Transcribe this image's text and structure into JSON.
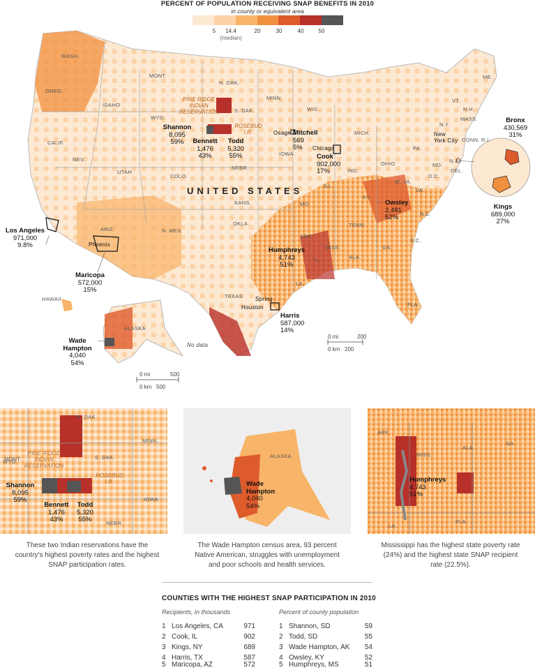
{
  "header": {
    "title": "PERCENT OF POPULATION RECEIVING SNAP BENEFITS IN 2010",
    "subtitle": "in county or equivalent area"
  },
  "legend": {
    "colors": [
      "#fde8d2",
      "#fbd3a7",
      "#f8b468",
      "#f1903e",
      "#de5b2c",
      "#b8302a",
      "#555555"
    ],
    "ticks": [
      "5",
      "14.4",
      "20",
      "30",
      "40",
      "50"
    ],
    "median_note": "(median)"
  },
  "map": {
    "country_label": "UNITED STATES",
    "no_data": "No data",
    "states": [
      "WASH.",
      "OREG.",
      "IDAHO",
      "MONT.",
      "WYO.",
      "N. DAK.",
      "S. DAK.",
      "MINN.",
      "WIS.",
      "MICH.",
      "IOWA",
      "NEBR.",
      "CALIF.",
      "NEV.",
      "UTAH",
      "COLO.",
      "KANS.",
      "MO.",
      "ILL.",
      "IND.",
      "OHIO",
      "PA.",
      "N.Y.",
      "VT.",
      "N.H.",
      "MAINE_ME",
      "MASS.",
      "CONN.",
      "R.I.",
      "N.J.",
      "DEL.",
      "MD.",
      "D.C.",
      "VA.",
      "W. VA.",
      "KY.",
      "TENN.",
      "N.C.",
      "S.C.",
      "GA.",
      "ALA.",
      "MISS.",
      "ARK.",
      "LA.",
      "FLA.",
      "TEXAS",
      "OKLA.",
      "N. MEX.",
      "ARIZ.",
      "ALASKA",
      "HAWAII"
    ],
    "reservation": "PINE RIDGE INDIAN RESERVATION",
    "rosebud": "ROSEBUD I.R.",
    "cities": [
      "Phoenix",
      "Chicago",
      "Spring",
      "Houston",
      "Osage",
      "New York City"
    ],
    "callouts": [
      {
        "name": "Shannon",
        "count": "8,095",
        "pct": "59%"
      },
      {
        "name": "Bennett",
        "count": "1,476",
        "pct": "43%"
      },
      {
        "name": "Todd",
        "count": "5,320",
        "pct": "55%"
      },
      {
        "name": "Mitchell",
        "count": "569",
        "pct": "5%"
      },
      {
        "name": "Cook",
        "count": "902,000",
        "pct": "17%"
      },
      {
        "name": "Los Angeles",
        "count": "971,000",
        "pct": "9.8%"
      },
      {
        "name": "Maricopa",
        "count": "572,000",
        "pct": "15%"
      },
      {
        "name": "Humphreys",
        "count": "4,743",
        "pct": "51%"
      },
      {
        "name": "Owsley",
        "count": "2,481",
        "pct": "52%"
      },
      {
        "name": "Harris",
        "count": "587,000",
        "pct": "14%"
      },
      {
        "name": "Wade Hampton",
        "count": "4,040",
        "pct": "54%"
      },
      {
        "name": "Bronx",
        "count": "430,569",
        "pct": "31%"
      },
      {
        "name": "Kings",
        "count": "689,000",
        "pct": "27%"
      }
    ],
    "scale_us": {
      "mi": "0 mi",
      "mi_max": "200",
      "km": "0 km",
      "km_max": "200"
    },
    "scale_ak": {
      "mi": "0 mi",
      "mi_max": "500",
      "km": "0 km",
      "km_max": "500"
    }
  },
  "insets": {
    "pine_ridge": {
      "states": [
        "N. DAK.",
        "MONT.",
        "WYO.",
        "S. DAK.",
        "MINN.",
        "IOWA",
        "NEBR."
      ],
      "reservation": "PINE RIDGE INDIAN RESERVATION",
      "rosebud": "ROSEBUD I.R.",
      "shannon": {
        "name": "Shannon",
        "count": "8,095",
        "pct": "59%"
      },
      "bennett": {
        "name": "Bennett",
        "count": "1,476",
        "pct": "43%"
      },
      "todd": {
        "name": "Todd",
        "count": "5,320",
        "pct": "55%"
      },
      "caption": "These two Indian reservations have the country's highest poverty rates and the highest SNAP participation rates."
    },
    "alaska": {
      "state": "ALASKA",
      "wade": {
        "name": "Wade Hampton",
        "count": "4,040",
        "pct": "54%"
      },
      "caption": "The Wade Hampton census area, 93 percent Native American, struggles with unemployment and poor schools and health services."
    },
    "mississippi": {
      "states": [
        "ARK.",
        "MISS.",
        "ALA.",
        "GA.",
        "LA.",
        "FLA."
      ],
      "humphreys": {
        "name": "Humphreys",
        "count": "4,743",
        "pct": "51%"
      },
      "caption": "Mississippi has the highest state poverty rate (24%) and the highest state SNAP recipient rate (22.5%)."
    }
  },
  "table": {
    "title": "COUNTIES WITH THE HIGHEST SNAP PARTICIPATION IN 2010",
    "left_header": "Recipients, in thousands",
    "right_header": "Percent of county population",
    "left_rows": [
      {
        "n": "1",
        "name": "Los Angeles, CA",
        "v": "971"
      },
      {
        "n": "2",
        "name": "Cook, IL",
        "v": "902"
      },
      {
        "n": "3",
        "name": "Kings, NY",
        "v": "689"
      },
      {
        "n": "4",
        "name": "Harris, TX",
        "v": "587"
      },
      {
        "n": "5",
        "name": "Maricopa, AZ",
        "v": "572"
      }
    ],
    "right_rows": [
      {
        "n": "1",
        "name": "Shannon, SD",
        "v": "59"
      },
      {
        "n": "2",
        "name": "Todd, SD",
        "v": "55"
      },
      {
        "n": "3",
        "name": "Wade Hampton, AK",
        "v": "54"
      },
      {
        "n": "4",
        "name": "Owsley, KY",
        "v": "52"
      },
      {
        "n": "5",
        "name": "Humphreys, MS",
        "v": "51"
      }
    ]
  }
}
